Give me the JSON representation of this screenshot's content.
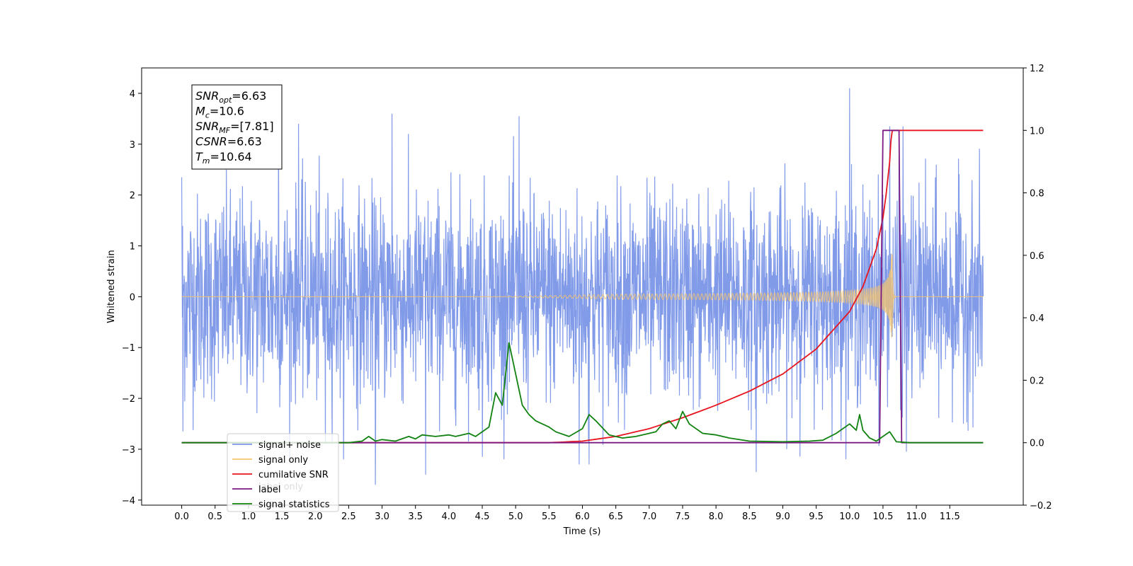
{
  "chart_data": {
    "type": "line",
    "xlabel": "Time (s)",
    "ylabel": "Whitened strain",
    "xlim": [
      -0.6,
      12.6
    ],
    "ylim": [
      -4.1,
      4.5
    ],
    "y2lim": [
      -0.2,
      1.2
    ],
    "x_ticks": [
      "0.0",
      "0.5",
      "1.0",
      "1.5",
      "2.0",
      "2.5",
      "3.0",
      "3.5",
      "4.0",
      "4.5",
      "5.0",
      "5.5",
      "6.0",
      "6.5",
      "7.0",
      "7.5",
      "8.0",
      "8.5",
      "9.0",
      "9.5",
      "10.0",
      "10.5",
      "11.0",
      "11.5"
    ],
    "y_ticks": [
      "4",
      "3",
      "2",
      "1",
      "0",
      "−1",
      "−2",
      "−3",
      "−4"
    ],
    "y_tick_values": [
      4,
      3,
      2,
      1,
      0,
      -1,
      -2,
      -3,
      -4
    ],
    "y2_ticks": [
      "1.2",
      "1.0",
      "0.8",
      "0.6",
      "0.4",
      "0.2",
      "0.0",
      "−0.2"
    ],
    "y2_tick_values": [
      1.2,
      1.0,
      0.8,
      0.6,
      0.4,
      0.2,
      0.0,
      -0.2
    ],
    "annotation": {
      "lines": [
        {
          "main": "SNR",
          "sub": "opt",
          "rest": "=6.63"
        },
        {
          "main": "M",
          "sub": "c",
          "rest": "=10.6"
        },
        {
          "main": "SNR",
          "sub": "MF",
          "rest": "=[7.81]"
        },
        {
          "main": "CSNR",
          "sub": "",
          "rest": "=6.63"
        },
        {
          "main": "T",
          "sub": "m",
          "rest": "=10.64"
        }
      ]
    },
    "legend": {
      "placement": "lower-left",
      "entries": [
        {
          "label": "signal+ noise",
          "color": "#7b96e8"
        },
        {
          "label": "signal only",
          "color": "#f5c46e"
        },
        {
          "label": "cumilative SNR",
          "color": "#e8141e"
        },
        {
          "label": "label",
          "color": "#7a1a82"
        },
        {
          "label": "signal statistics",
          "color": "#118211"
        }
      ],
      "hidden_label": "label only"
    },
    "series": [
      {
        "name": "signal+ noise",
        "axis": "left",
        "color": "#7b96e8",
        "x_range": [
          0.0,
          12.0
        ],
        "std": 1.0,
        "outliers": [
          {
            "x": 0.0,
            "y": 2.35
          },
          {
            "x": 0.02,
            "y": -2.65
          },
          {
            "x": 1.45,
            "y": 3.5
          },
          {
            "x": 1.75,
            "y": 3.4
          },
          {
            "x": 2.15,
            "y": -2.9
          },
          {
            "x": 3.15,
            "y": 3.6
          },
          {
            "x": 3.65,
            "y": -3.5
          },
          {
            "x": 2.9,
            "y": -3.7
          },
          {
            "x": 4.5,
            "y": -3.15
          },
          {
            "x": 5.05,
            "y": 3.55
          },
          {
            "x": 5.95,
            "y": -3.3
          },
          {
            "x": 6.1,
            "y": -3.3
          },
          {
            "x": 8.6,
            "y": -3.45
          },
          {
            "x": 10.0,
            "y": 4.1
          },
          {
            "x": 10.6,
            "y": 3.35
          },
          {
            "x": 10.8,
            "y": 3.35
          },
          {
            "x": 10.85,
            "y": -3.05
          }
        ]
      },
      {
        "name": "signal only",
        "axis": "left",
        "color": "#f5c46e",
        "chirp": {
          "t_merge": 10.64,
          "peak": 0.85,
          "x_start": 0.0,
          "x_end": 12.0
        }
      },
      {
        "name": "cumilative SNR",
        "axis": "right",
        "color": "#e8141e",
        "x": [
          0.0,
          5.5,
          6.0,
          6.5,
          7.0,
          7.5,
          8.0,
          8.5,
          9.0,
          9.5,
          10.0,
          10.2,
          10.4,
          10.5,
          10.55,
          10.6,
          10.62,
          10.64,
          12.0
        ],
        "y": [
          0.0,
          0.0,
          0.005,
          0.02,
          0.045,
          0.08,
          0.12,
          0.165,
          0.22,
          0.3,
          0.42,
          0.5,
          0.62,
          0.72,
          0.8,
          0.9,
          0.97,
          1.0,
          1.0
        ]
      },
      {
        "name": "label",
        "axis": "right",
        "color": "#7a1a82",
        "x": [
          0.0,
          10.45,
          10.5,
          10.74,
          10.78,
          12.0
        ],
        "y": [
          0.0,
          0.0,
          1.0,
          1.0,
          0.0,
          0.0
        ]
      },
      {
        "name": "signal statistics",
        "axis": "right",
        "color": "#118211",
        "x": [
          0.0,
          2.5,
          2.7,
          2.8,
          2.9,
          3.0,
          3.2,
          3.4,
          3.5,
          3.6,
          3.8,
          4.0,
          4.1,
          4.3,
          4.4,
          4.6,
          4.7,
          4.8,
          4.9,
          5.0,
          5.1,
          5.2,
          5.3,
          5.5,
          5.6,
          5.8,
          6.0,
          6.1,
          6.2,
          6.4,
          6.6,
          6.8,
          7.0,
          7.1,
          7.2,
          7.3,
          7.4,
          7.5,
          7.6,
          7.8,
          8.0,
          8.2,
          8.5,
          9.0,
          9.4,
          9.6,
          9.8,
          10.0,
          10.1,
          10.15,
          10.2,
          10.3,
          10.4,
          10.5,
          10.6,
          10.7,
          10.9,
          12.0
        ],
        "y": [
          0.0,
          0.0,
          0.005,
          0.02,
          0.005,
          0.01,
          0.005,
          0.02,
          0.012,
          0.025,
          0.02,
          0.025,
          0.02,
          0.03,
          0.02,
          0.05,
          0.16,
          0.12,
          0.32,
          0.22,
          0.12,
          0.09,
          0.07,
          0.05,
          0.035,
          0.02,
          0.045,
          0.09,
          0.07,
          0.025,
          0.015,
          0.02,
          0.03,
          0.035,
          0.06,
          0.07,
          0.045,
          0.1,
          0.06,
          0.03,
          0.025,
          0.015,
          0.005,
          0.003,
          0.005,
          0.008,
          0.03,
          0.06,
          0.04,
          0.09,
          0.04,
          0.015,
          0.005,
          0.02,
          0.035,
          0.003,
          0.0,
          0.0
        ]
      }
    ]
  }
}
